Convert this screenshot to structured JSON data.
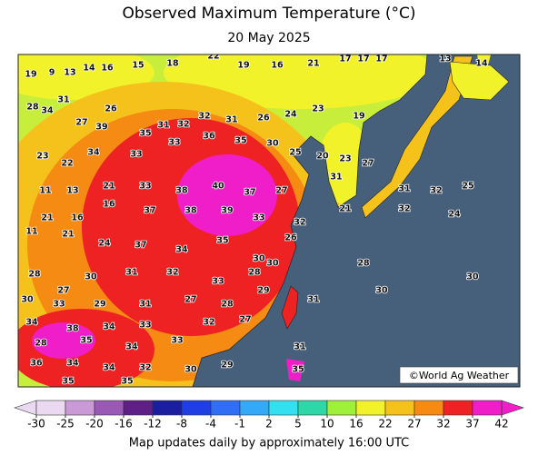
{
  "title": "Observed Maximum Temperature (°C)",
  "date": "20 May 2025",
  "credit": "©World Ag Weather",
  "footer": "Map updates daily by approximately 16:00 UTC",
  "colorbar": {
    "ticks": [
      -30,
      -25,
      -20,
      -16,
      -12,
      -8,
      -4,
      -1,
      2,
      5,
      10,
      16,
      22,
      27,
      32,
      37,
      42
    ],
    "colors": [
      "#ead9f0",
      "#c99ad6",
      "#9b59b6",
      "#5e1f86",
      "#1c1ea0",
      "#1f3ee6",
      "#2f6ef5",
      "#35a9f5",
      "#33e0f0",
      "#2fd6a8",
      "#9ff03a",
      "#f2f22a",
      "#f5c21c",
      "#f58b12",
      "#ee2222",
      "#f01ec8"
    ]
  },
  "stations": [
    19,
    9,
    13,
    14,
    16,
    15,
    18,
    22,
    19,
    16,
    21,
    17,
    17,
    17,
    13,
    14,
    28,
    34,
    31,
    27,
    26,
    39,
    35,
    31,
    32,
    32,
    31,
    26,
    24,
    23,
    19,
    23,
    22,
    34,
    33,
    33,
    36,
    35,
    30,
    25,
    20,
    23,
    27,
    11,
    13,
    21,
    33,
    38,
    40,
    37,
    27,
    31,
    31,
    32,
    25,
    21,
    16,
    16,
    37,
    38,
    39,
    33,
    32,
    21,
    32,
    24,
    11,
    21,
    24,
    37,
    34,
    35,
    30,
    26,
    28,
    27,
    30,
    31,
    32,
    33,
    28,
    30,
    28,
    30,
    30,
    33,
    29,
    31,
    27,
    28,
    29,
    31,
    30,
    34,
    38,
    34,
    33,
    32,
    27,
    28,
    35,
    34,
    33,
    31,
    36,
    34,
    34,
    32,
    30,
    29,
    35,
    35,
    35
  ]
}
